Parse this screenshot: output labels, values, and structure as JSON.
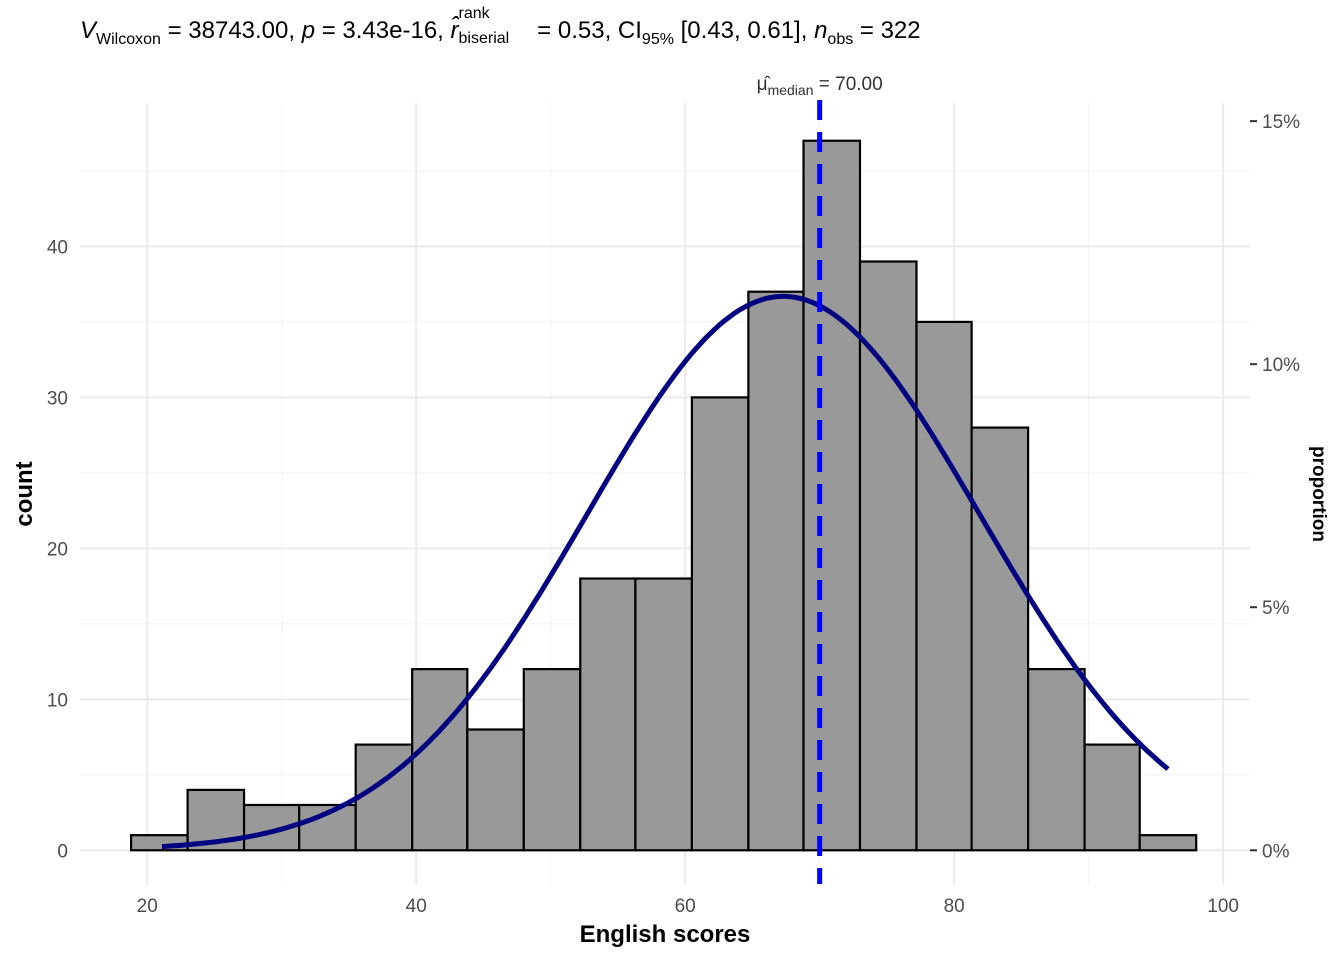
{
  "subtitle": {
    "v_symbol": "V",
    "v_sub": "Wilcoxon",
    "v_value": " = 38743.00, ",
    "p_symbol": "p",
    "p_value": " = 3.43e-16, ",
    "r_symbol": "r̂",
    "r_sup": "rank",
    "r_sub": "biserial",
    "r_value": " = 0.53, CI",
    "ci_sub": "95%",
    "ci_value": " [0.43, 0.61], ",
    "n_symbol": "n",
    "n_sub": "obs",
    "n_value": " = 322"
  },
  "median_label": {
    "symbol": "μ̂",
    "sub": "median",
    "value": " = 70.00"
  },
  "colors": {
    "bar_fill": "#999999",
    "bar_stroke": "#000000",
    "curve": "#000080",
    "median_line": "#0000ff",
    "grid_major": "#ebebeb",
    "grid_minor": "#f2f2f2"
  },
  "chart_data": {
    "type": "bar",
    "xlabel": "English scores",
    "ylabel": "count",
    "y2label": "proportion",
    "xlim": [
      15,
      102
    ],
    "ylim": [
      -2.3,
      49.5
    ],
    "x_ticks": [
      20,
      40,
      60,
      80,
      100
    ],
    "y_ticks": [
      0,
      10,
      20,
      30,
      40
    ],
    "y2_ticks": [
      {
        "label": "0%",
        "count": 0
      },
      {
        "label": "5%",
        "count": 16.1
      },
      {
        "label": "10%",
        "count": 32.2
      },
      {
        "label": "15%",
        "count": 48.3
      }
    ],
    "grid": true,
    "bins": [
      {
        "x0": 18.8,
        "x1": 23.0,
        "count": 1
      },
      {
        "x0": 23.0,
        "x1": 27.2,
        "count": 4
      },
      {
        "x0": 27.2,
        "x1": 31.3,
        "count": 3
      },
      {
        "x0": 31.3,
        "x1": 35.5,
        "count": 3
      },
      {
        "x0": 35.5,
        "x1": 39.7,
        "count": 7
      },
      {
        "x0": 39.7,
        "x1": 43.8,
        "count": 12
      },
      {
        "x0": 43.8,
        "x1": 48.0,
        "count": 8
      },
      {
        "x0": 48.0,
        "x1": 52.2,
        "count": 12
      },
      {
        "x0": 52.2,
        "x1": 56.3,
        "count": 18
      },
      {
        "x0": 56.3,
        "x1": 60.5,
        "count": 18
      },
      {
        "x0": 60.5,
        "x1": 64.7,
        "count": 30
      },
      {
        "x0": 64.7,
        "x1": 68.8,
        "count": 37
      },
      {
        "x0": 68.8,
        "x1": 73.0,
        "count": 47
      },
      {
        "x0": 73.0,
        "x1": 77.2,
        "count": 39
      },
      {
        "x0": 77.2,
        "x1": 81.3,
        "count": 35
      },
      {
        "x0": 81.3,
        "x1": 85.5,
        "count": 28
      },
      {
        "x0": 85.5,
        "x1": 89.7,
        "count": 12
      },
      {
        "x0": 89.7,
        "x1": 93.8,
        "count": 7
      },
      {
        "x0": 93.8,
        "x1": 98.0,
        "count": 1
      }
    ],
    "normal_curve": {
      "mean": 67.3,
      "sd": 14.6,
      "x_start": 21.1,
      "x_end": 95.9,
      "n": 322,
      "binwidth": 4.17
    },
    "median": 70.0
  }
}
